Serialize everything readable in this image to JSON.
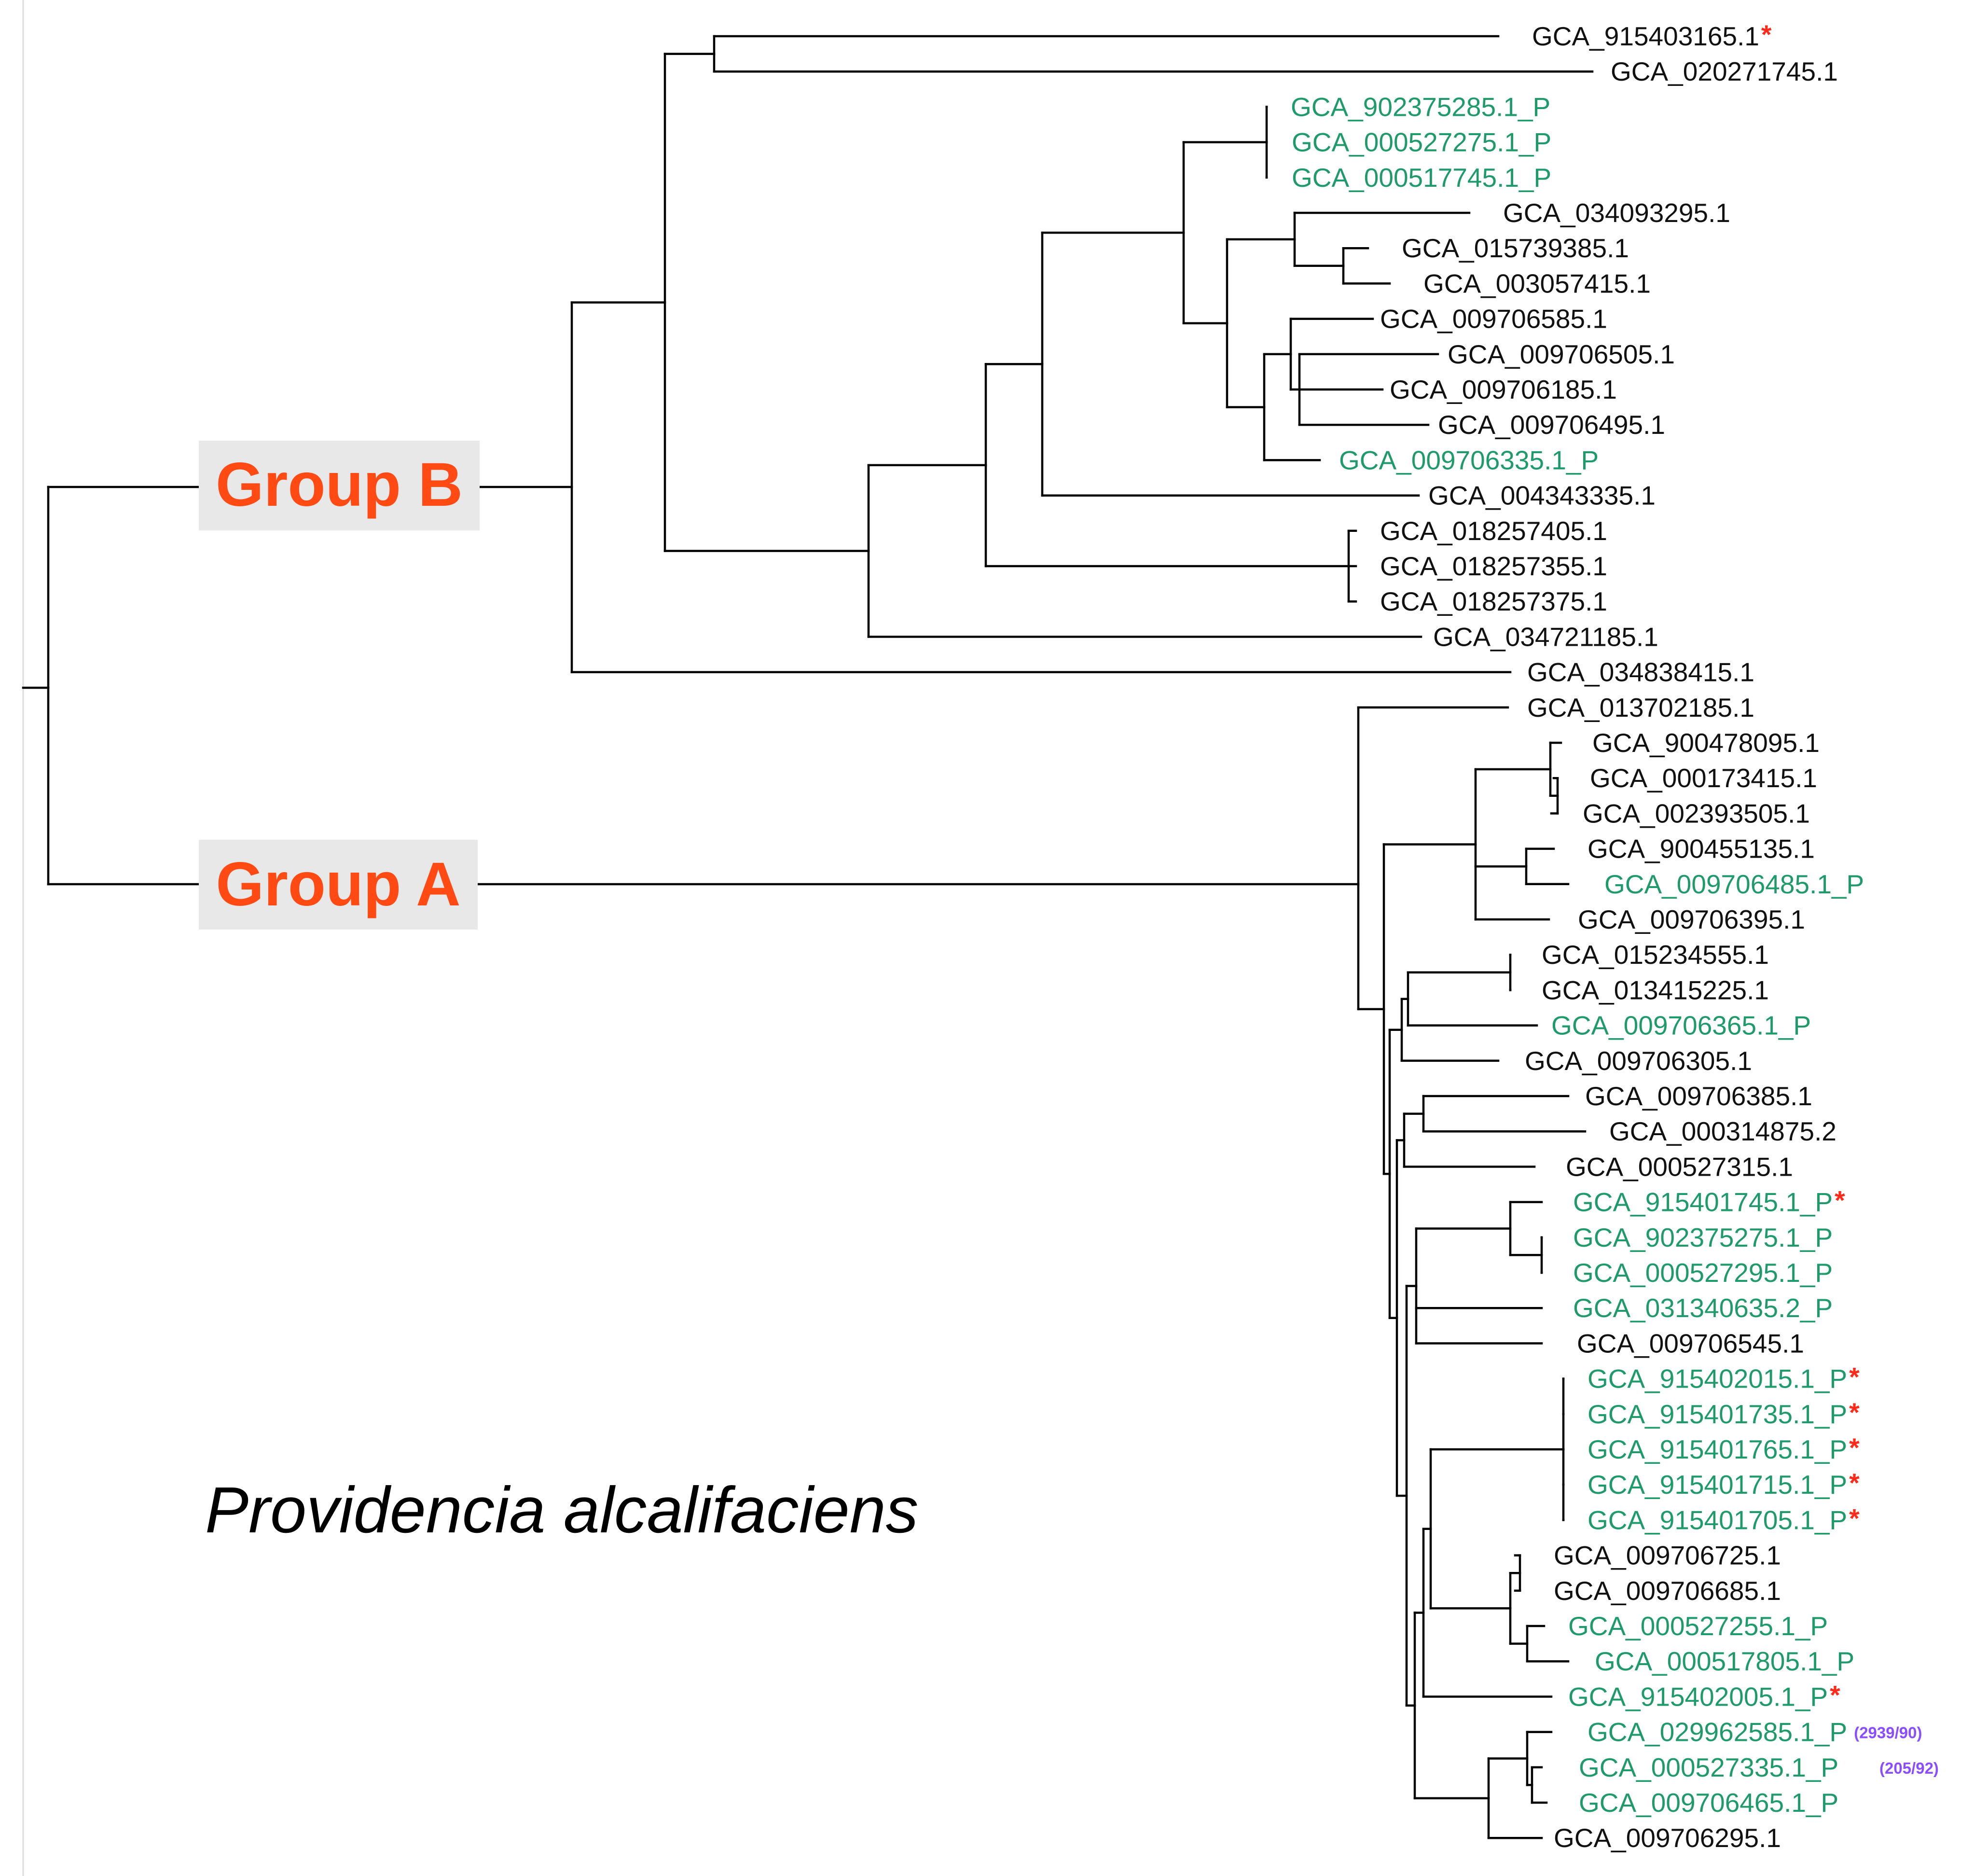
{
  "title": "Providencia alcalifaciens",
  "groups": {
    "b_label": "Group B",
    "a_label": "Group A"
  },
  "colors": {
    "branch": "#000000",
    "pathogen_label": "#1f9a6a",
    "plain_label": "#111111",
    "asterisk": "#ff2a1a",
    "group_text": "#ff4a14",
    "group_background": "#e8e8e8",
    "annotation": "#8a4dff"
  },
  "tips": [
    {
      "label": "GCA_915403165.1",
      "pathogenic": false,
      "star": true
    },
    {
      "label": "GCA_020271745.1",
      "pathogenic": false
    },
    {
      "label": "GCA_902375285.1_P",
      "pathogenic": true
    },
    {
      "label": "GCA_000527275.1_P",
      "pathogenic": true
    },
    {
      "label": "GCA_000517745.1_P",
      "pathogenic": true
    },
    {
      "label": "GCA_034093295.1",
      "pathogenic": false
    },
    {
      "label": "GCA_015739385.1",
      "pathogenic": false
    },
    {
      "label": "GCA_003057415.1",
      "pathogenic": false
    },
    {
      "label": "GCA_009706585.1",
      "pathogenic": false
    },
    {
      "label": "GCA_009706505.1",
      "pathogenic": false
    },
    {
      "label": "GCA_009706185.1",
      "pathogenic": false
    },
    {
      "label": "GCA_009706495.1",
      "pathogenic": false
    },
    {
      "label": "GCA_009706335.1_P",
      "pathogenic": true
    },
    {
      "label": "GCA_004343335.1",
      "pathogenic": false
    },
    {
      "label": "GCA_018257405.1",
      "pathogenic": false
    },
    {
      "label": "GCA_018257355.1",
      "pathogenic": false
    },
    {
      "label": "GCA_018257375.1",
      "pathogenic": false
    },
    {
      "label": "GCA_034721185.1",
      "pathogenic": false
    },
    {
      "label": "GCA_034838415.1",
      "pathogenic": false
    },
    {
      "label": "GCA_013702185.1",
      "pathogenic": false
    },
    {
      "label": "GCA_900478095.1",
      "pathogenic": false
    },
    {
      "label": "GCA_000173415.1",
      "pathogenic": false
    },
    {
      "label": "GCA_002393505.1",
      "pathogenic": false
    },
    {
      "label": "GCA_900455135.1",
      "pathogenic": false
    },
    {
      "label": "GCA_009706485.1_P",
      "pathogenic": true
    },
    {
      "label": "GCA_009706395.1",
      "pathogenic": false
    },
    {
      "label": "GCA_015234555.1",
      "pathogenic": false
    },
    {
      "label": "GCA_013415225.1",
      "pathogenic": false
    },
    {
      "label": "GCA_009706365.1_P",
      "pathogenic": true
    },
    {
      "label": "GCA_009706305.1",
      "pathogenic": false
    },
    {
      "label": "GCA_009706385.1",
      "pathogenic": false
    },
    {
      "label": "GCA_000314875.2",
      "pathogenic": false
    },
    {
      "label": "GCA_000527315.1",
      "pathogenic": false
    },
    {
      "label": "GCA_915401745.1_P",
      "pathogenic": true,
      "star": true
    },
    {
      "label": "GCA_902375275.1_P",
      "pathogenic": true
    },
    {
      "label": "GCA_000527295.1_P",
      "pathogenic": true
    },
    {
      "label": "GCA_031340635.2_P",
      "pathogenic": true
    },
    {
      "label": "GCA_009706545.1",
      "pathogenic": false
    },
    {
      "label": "GCA_915402015.1_P",
      "pathogenic": true,
      "star": true
    },
    {
      "label": "GCA_915401735.1_P",
      "pathogenic": true,
      "star": true
    },
    {
      "label": "GCA_915401765.1_P",
      "pathogenic": true,
      "star": true
    },
    {
      "label": "GCA_915401715.1_P",
      "pathogenic": true,
      "star": true
    },
    {
      "label": "GCA_915401705.1_P",
      "pathogenic": true,
      "star": true
    },
    {
      "label": "GCA_009706725.1",
      "pathogenic": false
    },
    {
      "label": "GCA_009706685.1",
      "pathogenic": false
    },
    {
      "label": "GCA_000527255.1_P",
      "pathogenic": true
    },
    {
      "label": "GCA_000517805.1_P",
      "pathogenic": true
    },
    {
      "label": "GCA_915402005.1_P",
      "pathogenic": true,
      "star": true
    },
    {
      "label": "GCA_029962585.1_P",
      "pathogenic": true,
      "note": "(2939/90)"
    },
    {
      "label": "GCA_000527335.1_P",
      "pathogenic": true,
      "note": "(205/92)"
    },
    {
      "label": "GCA_009706465.1_P",
      "pathogenic": true
    },
    {
      "label": "GCA_009706295.1",
      "pathogenic": false
    }
  ],
  "asterisk_symbol": "*"
}
